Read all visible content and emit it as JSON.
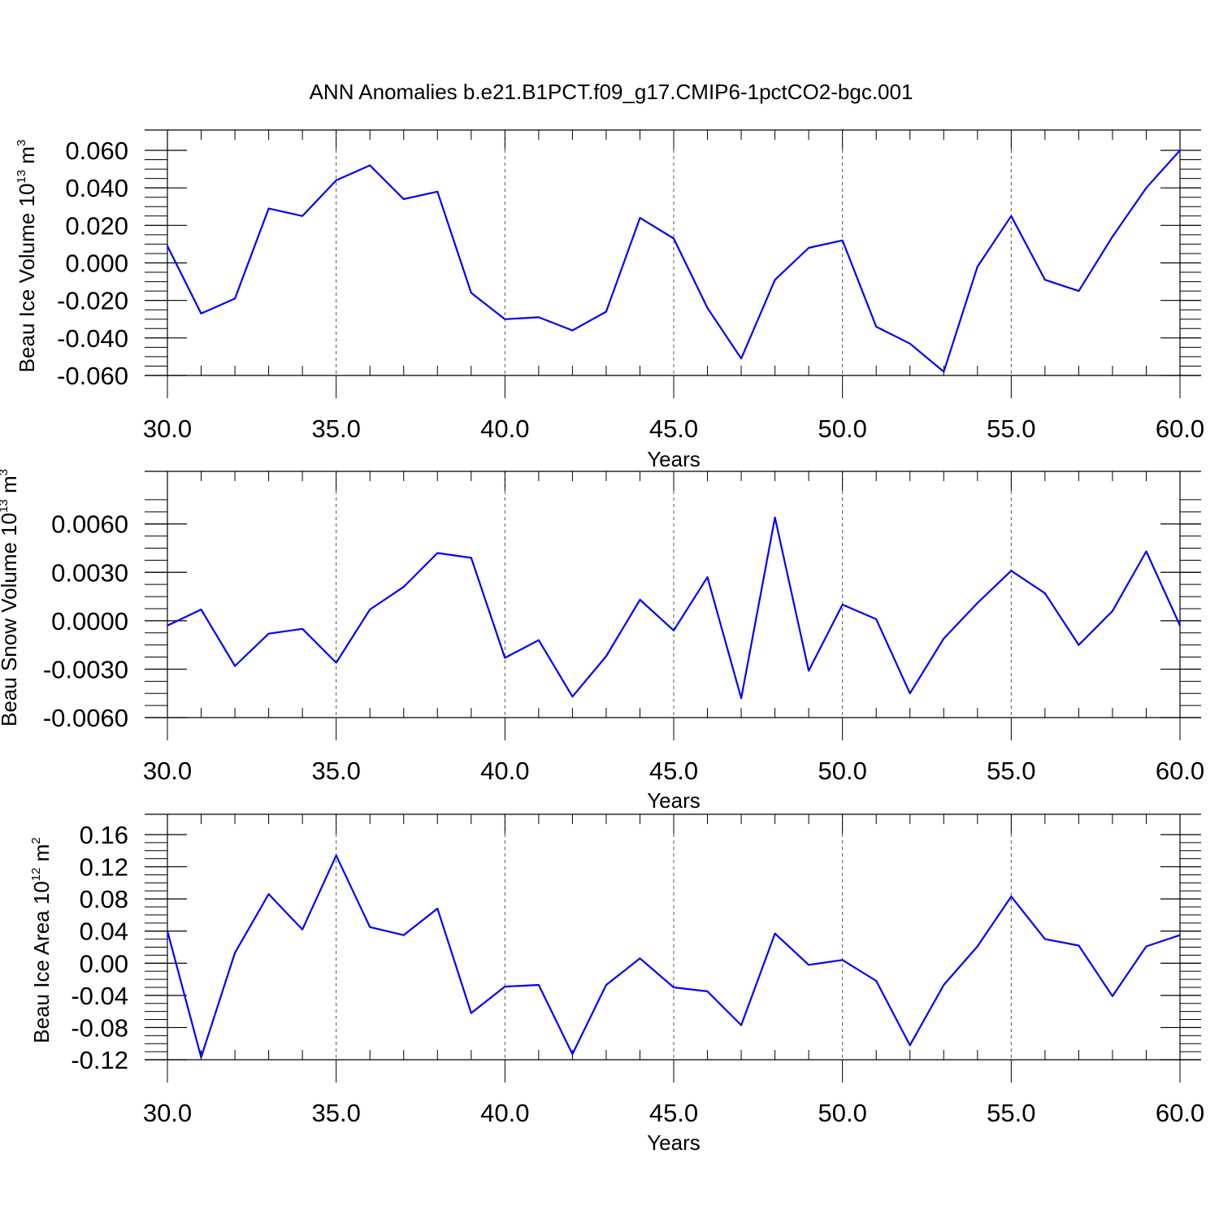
{
  "title": "ANN Anomalies b.e21.B1PCT.f09_g17.CMIP6-1pctCO2-bgc.001",
  "colors": {
    "line": "#0000ff",
    "axis": "#000000",
    "grid": "#555555"
  },
  "chart_data": [
    {
      "type": "line",
      "title": "ANN Anomalies b.e21.B1PCT.f09_g17.CMIP6-1pctCO2-bgc.001",
      "xlabel": "Years",
      "ylabel": {
        "text": "Beau Ice Volume 10",
        "sup": "13",
        "unit": " m",
        "unit_sup": "3"
      },
      "xlim": [
        30,
        60
      ],
      "ylim": [
        -0.06,
        0.06
      ],
      "xticks": [
        "30.0",
        "35.0",
        "40.0",
        "45.0",
        "50.0",
        "55.0",
        "60.0"
      ],
      "yticks": [
        {
          "value": 0.06,
          "label": "0.060"
        },
        {
          "value": 0.04,
          "label": "0.040"
        },
        {
          "value": 0.02,
          "label": "0.020"
        },
        {
          "value": 0.0,
          "label": "0.000"
        },
        {
          "value": -0.02,
          "label": "-0.020"
        },
        {
          "value": -0.04,
          "label": "-0.040"
        },
        {
          "value": -0.06,
          "label": "-0.060"
        }
      ],
      "grid": "vertical dashed at major x ticks",
      "x": [
        30,
        31,
        32,
        33,
        34,
        35,
        36,
        37,
        38,
        39,
        40,
        41,
        42,
        43,
        44,
        45,
        46,
        47,
        48,
        49,
        50,
        51,
        52,
        53,
        54,
        55,
        56,
        57,
        58,
        59,
        60
      ],
      "values": [
        0.009,
        -0.027,
        -0.019,
        0.029,
        0.025,
        0.044,
        0.052,
        0.034,
        0.038,
        -0.016,
        -0.03,
        -0.029,
        -0.036,
        -0.026,
        0.024,
        0.013,
        -0.024,
        -0.051,
        -0.009,
        0.008,
        0.012,
        -0.034,
        -0.043,
        -0.058,
        -0.002,
        0.025,
        -0.009,
        -0.015,
        0.014,
        0.04,
        0.06
      ]
    },
    {
      "type": "line",
      "xlabel": "Years",
      "ylabel": {
        "text": "Beau Snow Volume 10",
        "sup": "13",
        "unit": " m",
        "unit_sup": "3"
      },
      "xlim": [
        30,
        60
      ],
      "ylim": [
        -0.006,
        0.008
      ],
      "xticks": [
        "30.0",
        "35.0",
        "40.0",
        "45.0",
        "50.0",
        "55.0",
        "60.0"
      ],
      "yticks": [
        {
          "value": 0.006,
          "label": "0.0060"
        },
        {
          "value": 0.003,
          "label": "0.0030"
        },
        {
          "value": 0.0,
          "label": "0.0000"
        },
        {
          "value": -0.003,
          "label": "-0.0030"
        },
        {
          "value": -0.006,
          "label": "-0.0060"
        }
      ],
      "grid": "vertical dashed at major x ticks",
      "x": [
        30,
        31,
        32,
        33,
        34,
        35,
        36,
        37,
        38,
        39,
        40,
        41,
        42,
        43,
        44,
        45,
        46,
        47,
        48,
        49,
        50,
        51,
        52,
        53,
        54,
        55,
        56,
        57,
        58,
        59,
        60
      ],
      "values": [
        -0.0003,
        0.0007,
        -0.0028,
        -0.0008,
        -0.0005,
        -0.0026,
        0.0007,
        0.0021,
        0.0042,
        0.0039,
        -0.0023,
        -0.0012,
        -0.0047,
        -0.0022,
        0.0013,
        -0.0006,
        0.0027,
        -0.0048,
        0.0064,
        -0.0031,
        0.001,
        0.0001,
        -0.0045,
        -0.0011,
        0.0011,
        0.0031,
        0.0017,
        -0.0015,
        0.0006,
        0.0043,
        -0.0003
      ]
    },
    {
      "type": "line",
      "xlabel": "Years",
      "ylabel": {
        "text": "Beau Ice Area 10",
        "sup": "12",
        "unit": " m",
        "unit_sup": "2"
      },
      "xlim": [
        30,
        60
      ],
      "ylim": [
        -0.12,
        0.16
      ],
      "xticks": [
        "30.0",
        "35.0",
        "40.0",
        "45.0",
        "50.0",
        "55.0",
        "60.0"
      ],
      "yticks": [
        {
          "value": 0.16,
          "label": "0.16"
        },
        {
          "value": 0.12,
          "label": "0.12"
        },
        {
          "value": 0.08,
          "label": "0.08"
        },
        {
          "value": 0.04,
          "label": "0.04"
        },
        {
          "value": 0.0,
          "label": "0.00"
        },
        {
          "value": -0.04,
          "label": "-0.04"
        },
        {
          "value": -0.08,
          "label": "-0.08"
        },
        {
          "value": -0.12,
          "label": "-0.12"
        }
      ],
      "grid": "vertical dashed at major x ticks",
      "x": [
        30,
        31,
        32,
        33,
        34,
        35,
        36,
        37,
        38,
        39,
        40,
        41,
        42,
        43,
        44,
        45,
        46,
        47,
        48,
        49,
        50,
        51,
        52,
        53,
        54,
        55,
        56,
        57,
        58,
        59,
        60
      ],
      "values": [
        0.04,
        -0.117,
        0.013,
        0.086,
        0.042,
        0.134,
        0.045,
        0.035,
        0.068,
        -0.062,
        -0.029,
        -0.027,
        -0.113,
        -0.027,
        0.006,
        -0.03,
        -0.035,
        -0.077,
        0.037,
        -0.002,
        0.004,
        -0.022,
        -0.102,
        -0.027,
        0.021,
        0.083,
        0.03,
        0.022,
        -0.041,
        0.021,
        0.035
      ]
    }
  ]
}
